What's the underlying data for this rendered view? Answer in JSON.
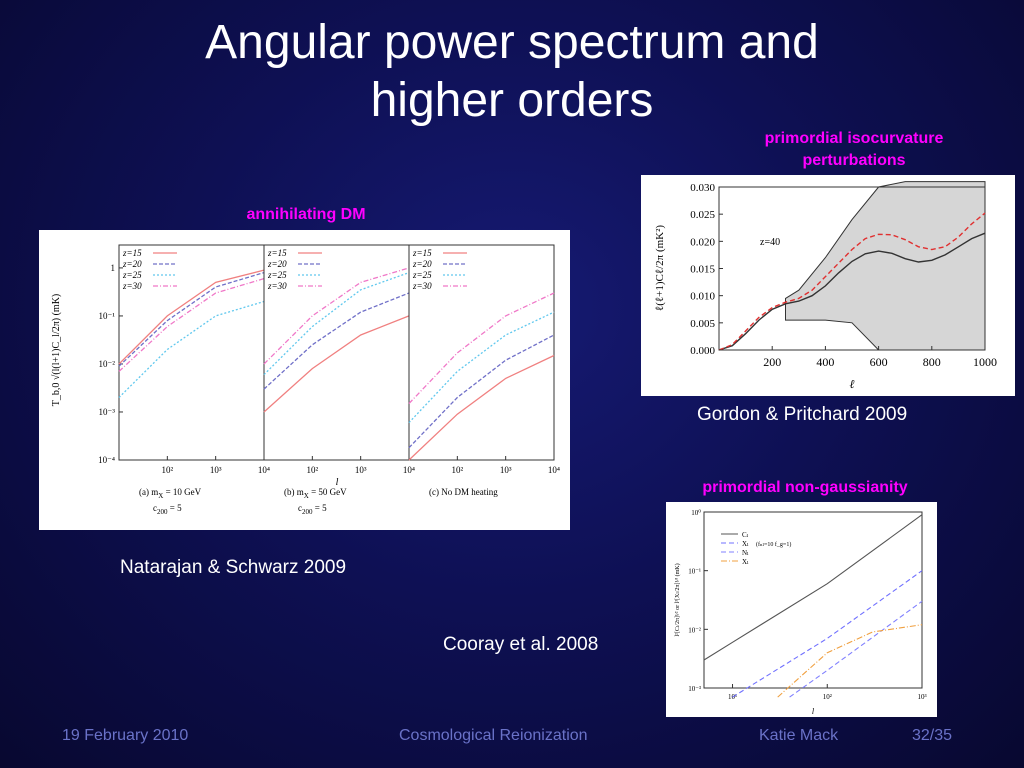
{
  "slide": {
    "title": "Angular power spectrum and\nhigher orders",
    "labels": {
      "isocurvature": "primordial isocurvature\nperturbations",
      "annihilating": "annihilating DM",
      "nongaussianity": "primordial non-gaussianity"
    },
    "citations": {
      "gordon": "Gordon & Pritchard 2009",
      "natarajan": "Natarajan & Schwarz 2009",
      "cooray": "Cooray et al. 2008"
    }
  },
  "footer": {
    "date": "19 February 2010",
    "event": "Cosmological Reionization",
    "author": "Katie Mack",
    "page": "32/35"
  },
  "chart_data": [
    {
      "type": "line",
      "panels": [
        {
          "caption": "(a)  m",
          "caption_sub": "X",
          "caption_rest": " = 10 GeV",
          "caption2": "c",
          "caption2_sub": "200",
          "caption2_rest": " = 5"
        },
        {
          "caption": "(b)  m",
          "caption_sub": "X",
          "caption_rest": " = 50 GeV",
          "caption2": "c",
          "caption2_sub": "200",
          "caption2_rest": " = 5"
        },
        {
          "caption": "(c)  No DM heating"
        }
      ],
      "legend": [
        "z=15",
        "z=20",
        "z=25",
        "z=30"
      ],
      "series_colors": [
        "#f08080",
        "#7070c8",
        "#60c8ee",
        "#f078c8"
      ],
      "yticks": [
        "1",
        "10⁻¹",
        "10⁻²",
        "10⁻³",
        "10⁻⁴"
      ],
      "xticks": [
        "10²",
        "10³",
        "10⁴"
      ],
      "ylabel": "T_b,0 √(l(l+1)C_l/2π)  (mK)",
      "xlabel": "l",
      "xlog": true,
      "ylog": true,
      "xlim": [
        10,
        10000
      ],
      "ylim": [
        0.0001,
        3
      ],
      "series": [
        [
          {
            "name": "z=15",
            "x": [
              10,
              100,
              1000,
              10000
            ],
            "y": [
              0.01,
              0.1,
              0.5,
              0.9
            ]
          },
          {
            "name": "z=20",
            "x": [
              10,
              100,
              1000,
              10000
            ],
            "y": [
              0.009,
              0.08,
              0.4,
              0.8
            ]
          },
          {
            "name": "z=25",
            "x": [
              10,
              100,
              1000,
              10000
            ],
            "y": [
              0.002,
              0.02,
              0.1,
              0.2
            ]
          },
          {
            "name": "z=30",
            "x": [
              10,
              100,
              1000,
              10000
            ],
            "y": [
              0.007,
              0.06,
              0.3,
              0.6
            ]
          }
        ],
        [
          {
            "name": "z=15",
            "x": [
              10,
              100,
              1000,
              10000
            ],
            "y": [
              0.001,
              0.008,
              0.04,
              0.1
            ]
          },
          {
            "name": "z=20",
            "x": [
              10,
              100,
              1000,
              10000
            ],
            "y": [
              0.003,
              0.025,
              0.12,
              0.3
            ]
          },
          {
            "name": "z=25",
            "x": [
              10,
              100,
              1000,
              10000
            ],
            "y": [
              0.006,
              0.06,
              0.35,
              0.8
            ]
          },
          {
            "name": "z=30",
            "x": [
              10,
              100,
              1000,
              10000
            ],
            "y": [
              0.01,
              0.1,
              0.5,
              1.0
            ]
          }
        ],
        [
          {
            "name": "z=15",
            "x": [
              10,
              100,
              1000,
              10000
            ],
            "y": [
              0.0001,
              0.0009,
              0.005,
              0.015
            ]
          },
          {
            "name": "z=20",
            "x": [
              10,
              100,
              1000,
              10000
            ],
            "y": [
              0.00018,
              0.002,
              0.012,
              0.04
            ]
          },
          {
            "name": "z=25",
            "x": [
              10,
              100,
              1000,
              10000
            ],
            "y": [
              0.0006,
              0.007,
              0.04,
              0.12
            ]
          },
          {
            "name": "z=30",
            "x": [
              10,
              100,
              1000,
              10000
            ],
            "y": [
              0.0015,
              0.017,
              0.1,
              0.3
            ]
          }
        ]
      ]
    },
    {
      "type": "area",
      "xlim": [
        0,
        1000
      ],
      "ylim": [
        0,
        0.03
      ],
      "xticks": [
        200,
        400,
        600,
        800,
        1000
      ],
      "yticks": [
        "0.000",
        "0.005",
        "0.010",
        "0.015",
        "0.020",
        "0.025",
        "0.030"
      ],
      "xlabel": "ℓ",
      "ylabel": "ℓ(ℓ+1)Cℓ/2π (mK²)",
      "annotation": "z=40",
      "band": {
        "x": [
          250,
          300,
          400,
          500,
          600,
          700,
          800,
          900,
          1000
        ],
        "upper": [
          0.0095,
          0.011,
          0.017,
          0.024,
          0.03,
          0.031,
          0.031,
          0.031,
          0.031
        ],
        "lower": [
          0.0055,
          0.0055,
          0.0055,
          0.005,
          0.0,
          0.0,
          0.0,
          0.0,
          0.0
        ]
      },
      "series": [
        {
          "name": "",
          "style": "solid",
          "color": "#333333",
          "x": [
            0,
            50,
            100,
            150,
            200,
            250,
            300,
            350,
            400,
            450,
            500,
            550,
            600,
            650,
            700,
            750,
            800,
            850,
            900,
            950,
            1000
          ],
          "y": [
            0.0,
            0.0008,
            0.003,
            0.0055,
            0.0075,
            0.0085,
            0.009,
            0.01,
            0.0118,
            0.0142,
            0.0163,
            0.0177,
            0.0182,
            0.0178,
            0.0168,
            0.0162,
            0.0165,
            0.0175,
            0.019,
            0.0205,
            0.0215
          ]
        },
        {
          "name": "",
          "style": "dashed",
          "color": "#e03030",
          "x": [
            0,
            50,
            100,
            150,
            200,
            250,
            300,
            350,
            400,
            450,
            500,
            550,
            600,
            650,
            700,
            750,
            800,
            850,
            900,
            950,
            1000
          ],
          "y": [
            0.0,
            0.001,
            0.0035,
            0.006,
            0.0078,
            0.0088,
            0.0095,
            0.011,
            0.0135,
            0.016,
            0.0185,
            0.0205,
            0.0213,
            0.0212,
            0.0203,
            0.019,
            0.0185,
            0.019,
            0.0208,
            0.0232,
            0.0252
          ]
        }
      ]
    },
    {
      "type": "line",
      "xlog": true,
      "ylog": true,
      "xlim": [
        5,
        1000
      ],
      "ylim": [
        0.001,
        1
      ],
      "xticks": [
        "10¹",
        "10²",
        "10³"
      ],
      "yticks": [
        "10⁰",
        "10⁻¹",
        "10⁻²",
        "10⁻³"
      ],
      "xlabel": "l",
      "ylabel": "l²[Cₗ/2π]¹⁄² or l³[Xₗ/2π]¹⁄³ (mK)",
      "legend": [
        "Cₗ",
        "Xₗ",
        "Nₗ",
        "Xₗ"
      ],
      "legend_note": "(fₙₗ=10 f_g=1)",
      "series": [
        {
          "name": "Cₗ",
          "style": "solid",
          "color": "#555555",
          "x": [
            5,
            10,
            100,
            1000
          ],
          "y": [
            0.003,
            0.006,
            0.06,
            0.9
          ]
        },
        {
          "name": "Xₗ",
          "style": "dashed",
          "color": "#7070ff",
          "x": [
            10,
            100,
            1000
          ],
          "y": [
            0.0007,
            0.007,
            0.1
          ]
        },
        {
          "name": "Nₗ",
          "style": "dashed",
          "color": "#8080ff",
          "x": [
            40,
            100,
            1000
          ],
          "y": [
            0.0007,
            0.002,
            0.03
          ]
        },
        {
          "name": "Xₗ",
          "style": "dashdot",
          "color": "#f0a040",
          "x": [
            30,
            100,
            300,
            1000
          ],
          "y": [
            0.0007,
            0.004,
            0.009,
            0.012
          ]
        }
      ]
    }
  ]
}
